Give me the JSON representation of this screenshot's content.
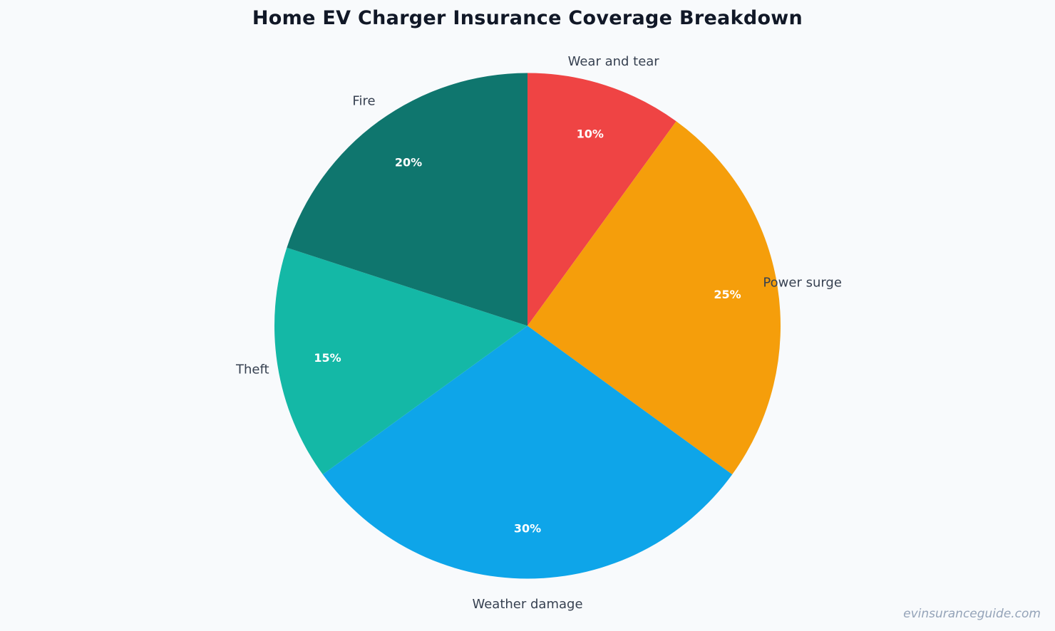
{
  "title": "Home EV Charger Insurance Coverage Breakdown",
  "watermark": "evinsuranceguide.com",
  "chart_data": {
    "type": "pie",
    "title": "Home EV Charger Insurance Coverage Breakdown",
    "categories": [
      "Wear and tear",
      "Power surge",
      "Weather damage",
      "Theft",
      "Fire"
    ],
    "values": [
      10,
      25,
      30,
      15,
      20
    ],
    "labels": [
      "10%",
      "25%",
      "30%",
      "15%",
      "20%"
    ],
    "colors": [
      "#ef4444",
      "#f59e0b",
      "#0ea5e9",
      "#14b8a6",
      "#0f766e"
    ],
    "start_angle": "12 o'clock",
    "direction": "clockwise",
    "legend": "none (outside labels)"
  }
}
